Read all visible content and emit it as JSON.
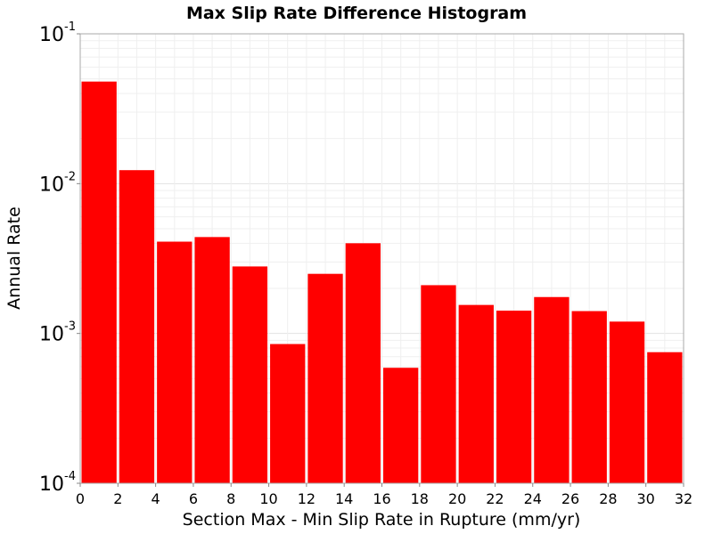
{
  "chart_data": {
    "type": "bar",
    "title": "Max Slip Rate Difference Histogram",
    "xlabel": "Section Max - Min Slip Rate in Rupture (mm/yr)",
    "ylabel": "Annual Rate",
    "y_scale": "log",
    "xlim": [
      0,
      32
    ],
    "ylim": [
      0.0001,
      0.1
    ],
    "bin_width": 2,
    "x_ticks": [
      "0",
      "2",
      "4",
      "6",
      "8",
      "10",
      "12",
      "14",
      "16",
      "18",
      "20",
      "22",
      "24",
      "26",
      "28",
      "30",
      "32"
    ],
    "y_ticks": [
      {
        "base": "10",
        "exp": "-4"
      },
      {
        "base": "10",
        "exp": "-3"
      },
      {
        "base": "10",
        "exp": "-2"
      },
      {
        "base": "10",
        "exp": "-1"
      }
    ],
    "grid": true,
    "series_color": "#ff0000",
    "bins": [
      0,
      2,
      4,
      6,
      8,
      10,
      12,
      14,
      16,
      18,
      20,
      22,
      24,
      26,
      28,
      30
    ],
    "values": [
      0.048,
      0.0123,
      0.0041,
      0.0044,
      0.0028,
      0.00085,
      0.0025,
      0.004,
      0.00059,
      0.0021,
      0.00155,
      0.00142,
      0.00175,
      0.00141,
      0.0012,
      0.00075
    ]
  }
}
